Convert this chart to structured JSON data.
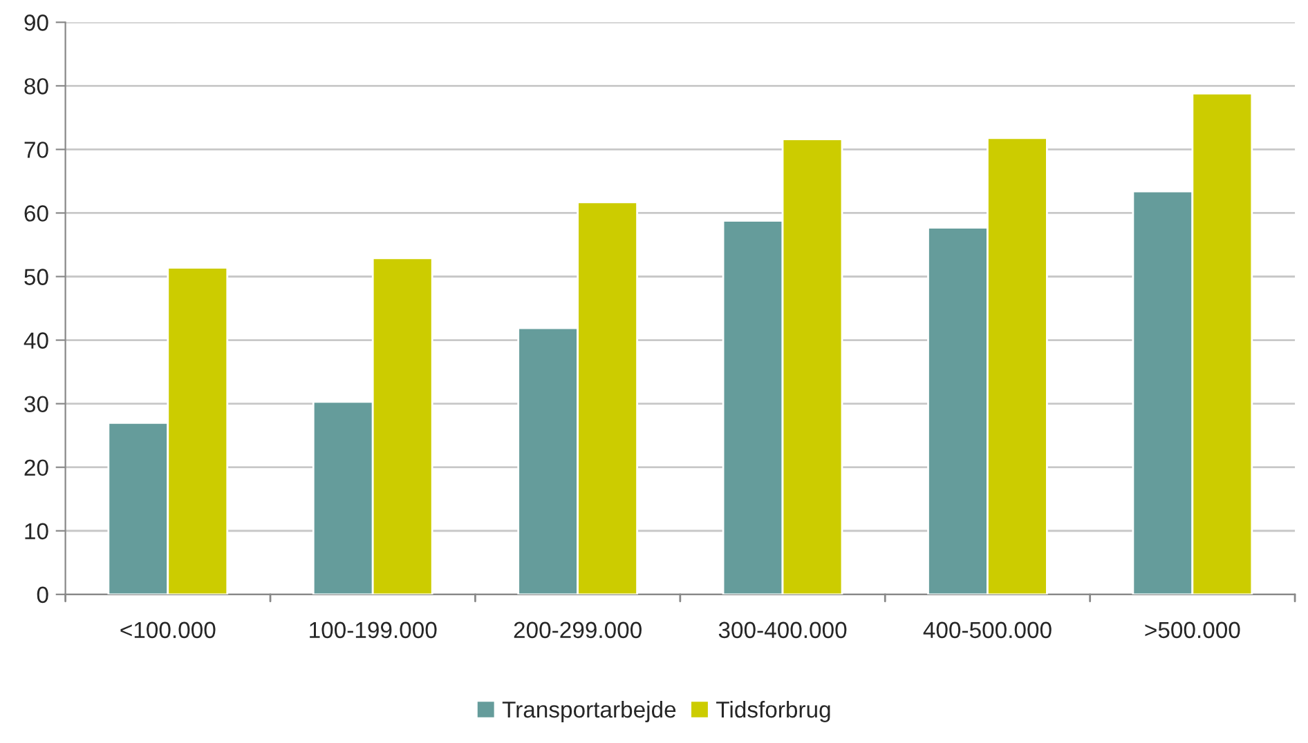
{
  "chart_data": {
    "type": "bar",
    "categories": [
      "<100.000",
      "100-199.000",
      "200-299.000",
      "300-400.000",
      "400-500.000",
      ">500.000"
    ],
    "series": [
      {
        "name": "Transportarbejde",
        "color": "#659c9b",
        "values": [
          27.0,
          30.3,
          41.9,
          58.8,
          57.7,
          63.4
        ]
      },
      {
        "name": "Tidsforbrug",
        "color": "#cccc00",
        "values": [
          51.4,
          52.9,
          61.7,
          71.6,
          71.8,
          78.8
        ]
      }
    ],
    "ylim": [
      0,
      90
    ],
    "yticks": [
      0,
      10,
      20,
      30,
      40,
      50,
      60,
      70,
      80,
      90
    ],
    "grid": "y",
    "legend": "bottom"
  }
}
